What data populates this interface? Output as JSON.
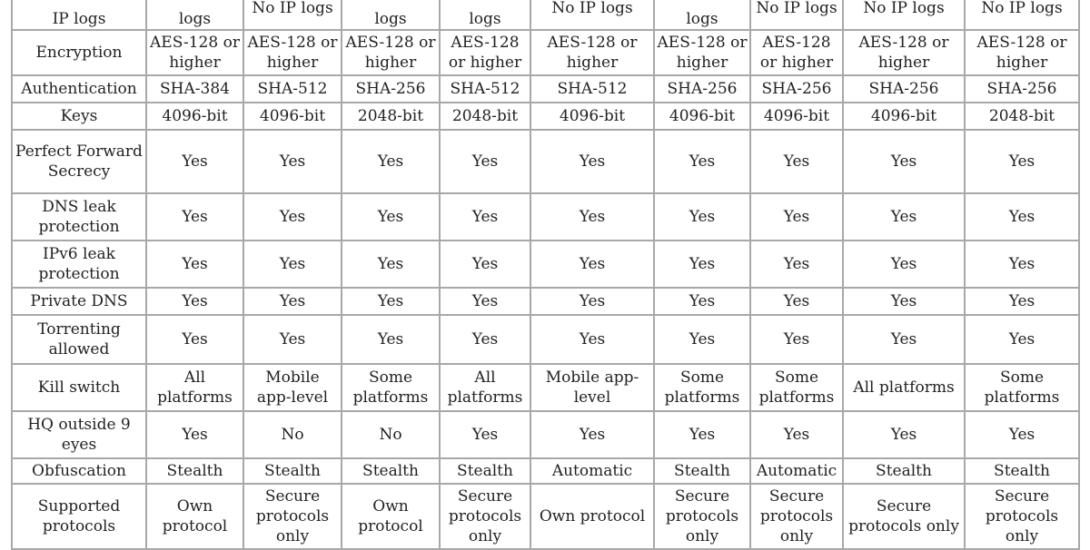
{
  "rows": [
    {
      "label": "IP logs",
      "values": [
        "logs",
        "No IP logs",
        "logs",
        "logs",
        "No IP logs",
        "logs",
        "No IP logs",
        "No IP logs",
        "No IP logs"
      ]
    },
    {
      "label": "Encryption",
      "values": [
        "AES-128 or higher",
        "AES-128 or higher",
        "AES-128 or higher",
        "AES-128 or higher",
        "AES-128 or higher",
        "AES-128 or higher",
        "AES-128 or higher",
        "AES-128 or higher",
        "AES-128 or higher"
      ]
    },
    {
      "label": "Authentication",
      "values": [
        "SHA-384",
        "SHA-512",
        "SHA-256",
        "SHA-512",
        "SHA-512",
        "SHA-256",
        "SHA-256",
        "SHA-256",
        "SHA-256"
      ]
    },
    {
      "label": "Keys",
      "values": [
        "4096-bit",
        "4096-bit",
        "2048-bit",
        "2048-bit",
        "4096-bit",
        "4096-bit",
        "4096-bit",
        "4096-bit",
        "2048-bit"
      ]
    },
    {
      "label": "Perfect Forward Secrecy",
      "values": [
        "Yes",
        "Yes",
        "Yes",
        "Yes",
        "Yes",
        "Yes",
        "Yes",
        "Yes",
        "Yes"
      ]
    },
    {
      "label": "DNS leak protection",
      "values": [
        "Yes",
        "Yes",
        "Yes",
        "Yes",
        "Yes",
        "Yes",
        "Yes",
        "Yes",
        "Yes"
      ]
    },
    {
      "label": "IPv6 leak protection",
      "values": [
        "Yes",
        "Yes",
        "Yes",
        "Yes",
        "Yes",
        "Yes",
        "Yes",
        "Yes",
        "Yes"
      ]
    },
    {
      "label": "Private DNS",
      "values": [
        "Yes",
        "Yes",
        "Yes",
        "Yes",
        "Yes",
        "Yes",
        "Yes",
        "Yes",
        "Yes"
      ]
    },
    {
      "label": "Torrenting allowed",
      "values": [
        "Yes",
        "Yes",
        "Yes",
        "Yes",
        "Yes",
        "Yes",
        "Yes",
        "Yes",
        "Yes"
      ]
    },
    {
      "label": "Kill switch",
      "values": [
        "All platforms",
        "Mobile app-level",
        "Some platforms",
        "All platforms",
        "Mobile app-level",
        "Some platforms",
        "Some platforms",
        "All platforms",
        "Some platforms"
      ]
    },
    {
      "label": "HQ outside 9 eyes",
      "values": [
        "Yes",
        "No",
        "No",
        "Yes",
        "Yes",
        "Yes",
        "Yes",
        "Yes",
        "Yes"
      ]
    },
    {
      "label": "Obfuscation",
      "values": [
        "Stealth",
        "Stealth",
        "Stealth",
        "Stealth",
        "Automatic",
        "Stealth",
        "Automatic",
        "Stealth",
        "Stealth"
      ]
    },
    {
      "label": "Supported protocols",
      "values": [
        "Own protocol",
        "Secure protocols only",
        "Own protocol",
        "Secure protocols only",
        "Own protocol",
        "Secure protocols only",
        "Secure protocols only",
        "Secure protocols only",
        "Secure protocols only"
      ]
    }
  ]
}
